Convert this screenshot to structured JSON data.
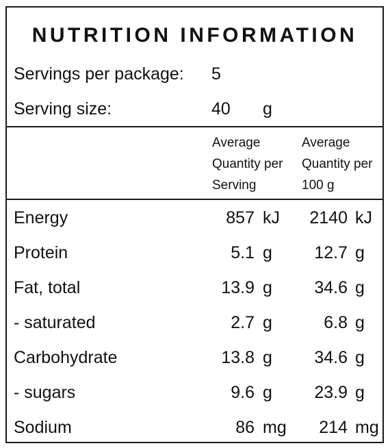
{
  "title": "NUTRITION INFORMATION",
  "servings": {
    "label": "Servings per package:",
    "value": "5"
  },
  "serving_size": {
    "label": "Serving size:",
    "value": "40",
    "unit": "g"
  },
  "headers": {
    "per_serving": [
      "Average",
      "Quantity per",
      "Serving"
    ],
    "per_100g": [
      "Average",
      "Quantity per",
      "100 g"
    ]
  },
  "rows": [
    {
      "label": "Energy",
      "serving": "857",
      "serving_unit": "kJ",
      "per100": "2140",
      "per100_unit": "kJ"
    },
    {
      "label": "Protein",
      "serving": "5.1",
      "serving_unit": "g",
      "per100": "12.7",
      "per100_unit": "g"
    },
    {
      "label": "Fat, total",
      "serving": "13.9",
      "serving_unit": "g",
      "per100": "34.6",
      "per100_unit": "g"
    },
    {
      "label": "- saturated",
      "serving": "2.7",
      "serving_unit": "g",
      "per100": "6.8",
      "per100_unit": "g"
    },
    {
      "label": "Carbohydrate",
      "serving": "13.8",
      "serving_unit": "g",
      "per100": "34.6",
      "per100_unit": "g"
    },
    {
      "label": "- sugars",
      "serving": "9.6",
      "serving_unit": "g",
      "per100": "23.9",
      "per100_unit": "g"
    },
    {
      "label": "Sodium",
      "serving": "86",
      "serving_unit": "mg",
      "per100": "214",
      "per100_unit": "mg"
    }
  ]
}
